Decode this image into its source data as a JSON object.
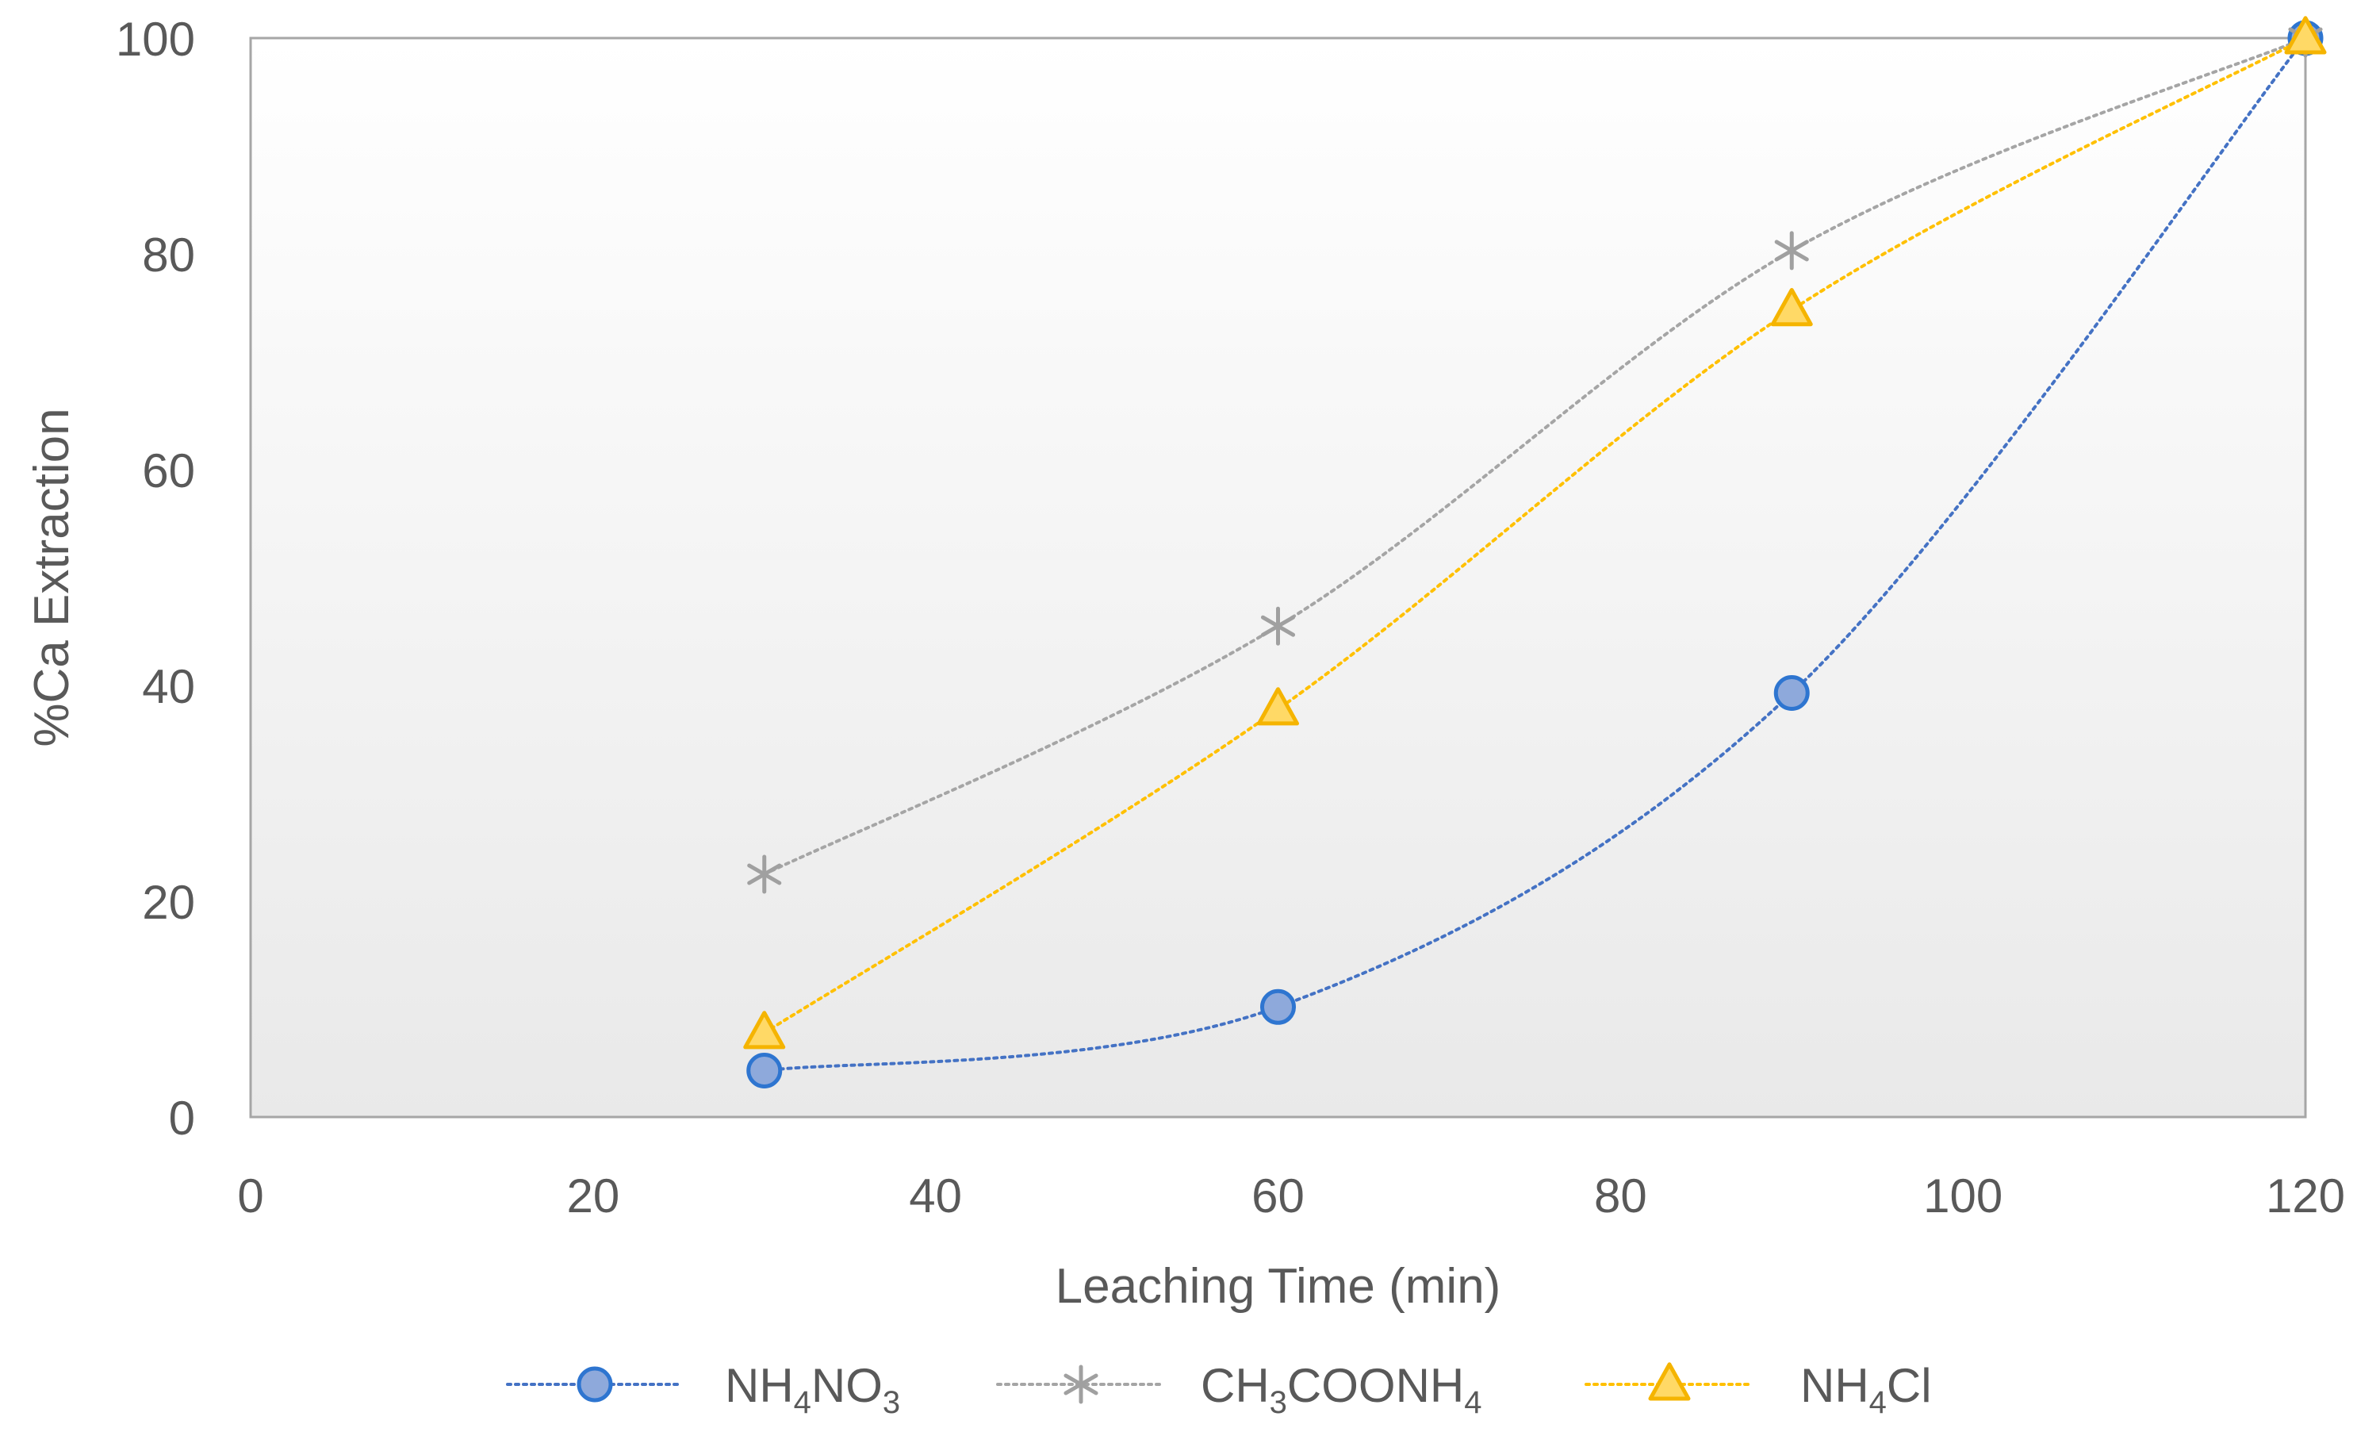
{
  "chart_data": {
    "type": "line",
    "xlabel": "Leaching Time (min)",
    "ylabel": "%Ca Extraction",
    "xlim": [
      0,
      120
    ],
    "ylim": [
      0,
      100
    ],
    "xticks": [
      0,
      20,
      40,
      60,
      80,
      100,
      120
    ],
    "yticks": [
      0,
      20,
      40,
      60,
      80,
      100
    ],
    "grid": false,
    "legend_position": "bottom",
    "line_style": "dotted, smoothed",
    "series": [
      {
        "name": "NH4NO3",
        "legend_parts": [
          [
            "NH",
            ""
          ],
          [
            "4",
            "sub"
          ],
          [
            "NO",
            ""
          ],
          [
            "3",
            "sub"
          ]
        ],
        "marker": "circle",
        "color": "#4472C4",
        "fill": "#8EA9DB",
        "stroke": "#2E75D0",
        "x": [
          30,
          60,
          90,
          120
        ],
        "values": [
          4.3,
          10.2,
          39.3,
          100
        ]
      },
      {
        "name": "CH3COONH4",
        "legend_parts": [
          [
            "CH",
            ""
          ],
          [
            "3",
            "sub"
          ],
          [
            "COONH",
            ""
          ],
          [
            "4",
            "sub"
          ]
        ],
        "marker": "star",
        "color": "#A5A5A5",
        "fill": "none",
        "stroke": "#A0A0A0",
        "x": [
          30,
          60,
          90,
          120
        ],
        "values": [
          22.5,
          45.5,
          80.3,
          100
        ]
      },
      {
        "name": "NH4Cl",
        "legend_parts": [
          [
            "NH",
            ""
          ],
          [
            "4",
            "sub"
          ],
          [
            "Cl",
            ""
          ]
        ],
        "marker": "triangle",
        "color": "#FFC000",
        "fill": "#FFD966",
        "stroke": "#F5B400",
        "x": [
          30,
          60,
          90,
          120
        ],
        "values": [
          7.8,
          37.8,
          74.8,
          100
        ]
      }
    ]
  }
}
